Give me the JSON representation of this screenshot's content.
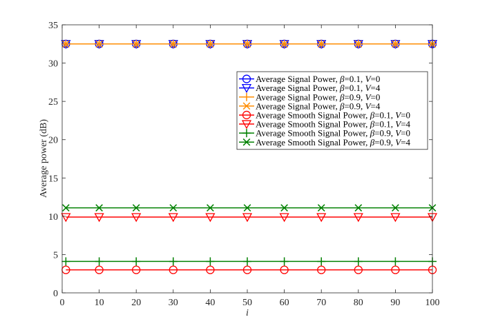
{
  "chart_data": {
    "type": "line",
    "xlabel": "i",
    "ylabel": "Average power (dB)",
    "xlim": [
      0,
      100
    ],
    "ylim": [
      0,
      35
    ],
    "xticks": [
      0,
      10,
      20,
      30,
      40,
      50,
      60,
      70,
      80,
      90,
      100
    ],
    "yticks": [
      0,
      5,
      10,
      15,
      20,
      25,
      30,
      35
    ],
    "grid": false,
    "legend_position": "upper-right",
    "x": [
      1,
      10,
      20,
      30,
      40,
      50,
      60,
      70,
      80,
      90,
      100
    ],
    "series": [
      {
        "name": "Average Signal Power, β=0.1, V=0",
        "legend_parts": [
          "Average Signal Power, ",
          "β",
          "=0.1, ",
          "V",
          "=0"
        ],
        "color": "#0000ff",
        "marker": "circle",
        "values": [
          32.5,
          32.5,
          32.5,
          32.5,
          32.5,
          32.5,
          32.5,
          32.5,
          32.5,
          32.5,
          32.5
        ]
      },
      {
        "name": "Average Signal Power, β=0.1, V=4",
        "legend_parts": [
          "Average Signal Power, ",
          "β",
          "=0.1, ",
          "V",
          "=4"
        ],
        "color": "#0000ff",
        "marker": "triangle-down",
        "values": [
          32.5,
          32.5,
          32.5,
          32.5,
          32.5,
          32.5,
          32.5,
          32.5,
          32.5,
          32.5,
          32.5
        ]
      },
      {
        "name": "Average Signal Power, β=0.9, V=0",
        "legend_parts": [
          "Average Signal Power, ",
          "β",
          "=0.9, ",
          "V",
          "=0"
        ],
        "color": "#ff8c00",
        "marker": "plus",
        "values": [
          32.5,
          32.5,
          32.5,
          32.5,
          32.5,
          32.5,
          32.5,
          32.5,
          32.5,
          32.5,
          32.5
        ]
      },
      {
        "name": "Average Signal Power, β=0.9, V=4",
        "legend_parts": [
          "Average Signal Power, ",
          "β",
          "=0.9, ",
          "V",
          "=4"
        ],
        "color": "#ff8c00",
        "marker": "x",
        "values": [
          32.5,
          32.5,
          32.5,
          32.5,
          32.5,
          32.5,
          32.5,
          32.5,
          32.5,
          32.5,
          32.5
        ]
      },
      {
        "name": "Average Smooth Signal Power, β=0.1, V=0",
        "legend_parts": [
          "Average Smooth Signal Power, ",
          "β",
          "=0.1, ",
          "V",
          "=0"
        ],
        "color": "#ff0000",
        "marker": "circle",
        "values": [
          3.0,
          3.0,
          3.0,
          3.0,
          3.0,
          3.0,
          3.0,
          3.0,
          3.0,
          3.0,
          3.0
        ]
      },
      {
        "name": "Average Smooth Signal Power, β=0.1, V=4",
        "legend_parts": [
          "Average Smooth Signal Power, ",
          "β",
          "=0.1, ",
          "V",
          "=4"
        ],
        "color": "#ff0000",
        "marker": "triangle-down",
        "values": [
          9.9,
          9.9,
          9.9,
          9.9,
          9.9,
          9.9,
          9.9,
          9.9,
          9.9,
          9.9,
          9.9
        ]
      },
      {
        "name": "Average Smooth Signal Power, β=0.9, V=0",
        "legend_parts": [
          "Average Smooth Signal Power, ",
          "β",
          "=0.9, ",
          "V",
          "=0"
        ],
        "color": "#008000",
        "marker": "plus",
        "values": [
          4.1,
          4.1,
          4.1,
          4.1,
          4.1,
          4.1,
          4.1,
          4.1,
          4.1,
          4.1,
          4.1
        ]
      },
      {
        "name": "Average Smooth Signal Power, β=0.9, V=4",
        "legend_parts": [
          "Average Smooth Signal Power, ",
          "β",
          "=0.9, ",
          "V",
          "=4"
        ],
        "color": "#008000",
        "marker": "x",
        "values": [
          11.1,
          11.1,
          11.1,
          11.1,
          11.1,
          11.1,
          11.1,
          11.1,
          11.1,
          11.1,
          11.1
        ]
      }
    ]
  }
}
